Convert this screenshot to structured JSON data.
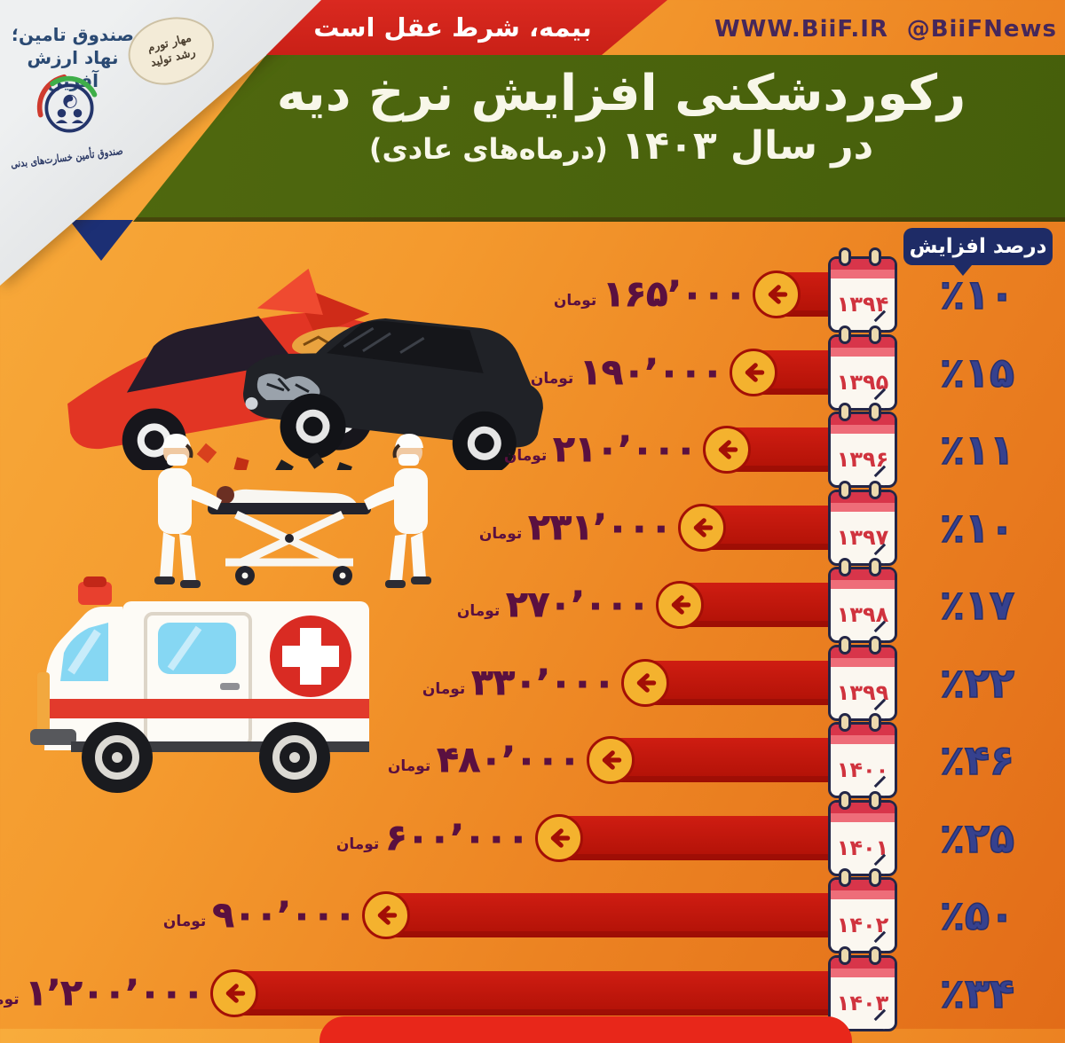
{
  "header": {
    "org": {
      "line1": "صندوق تامین؛",
      "line2": "نهاد ارزش آفرین",
      "seal": "صندوق تأمین خسارت‌های بدنی"
    },
    "stamp": {
      "line1": "مهار تورم",
      "line2": "رشد تولید"
    },
    "ribbon": "بیمه، شرط عقل است",
    "website": "WWW.BiiF.IR",
    "social": "@BiiFNews",
    "title_line1": "رکوردشکنی افزایش نرخ دیه",
    "title_line2_main": "در سال ۱۴۰۳",
    "title_line2_paren": "(درماه‌های عادی)"
  },
  "table": {
    "header_label": "درصد افزایش",
    "unit_label": "تومان",
    "rows": [
      {
        "year": "۱۳۹۴",
        "amount": "۱۶۵٬۰۰۰",
        "percent": "٪۱۰"
      },
      {
        "year": "۱۳۹۵",
        "amount": "۱۹۰٬۰۰۰",
        "percent": "٪۱۵"
      },
      {
        "year": "۱۳۹۶",
        "amount": "۲۱۰٬۰۰۰",
        "percent": "٪۱۱"
      },
      {
        "year": "۱۳۹۷",
        "amount": "۲۳۱٬۰۰۰",
        "percent": "٪۱۰"
      },
      {
        "year": "۱۳۹۸",
        "amount": "۲۷۰٬۰۰۰",
        "percent": "٪۱۷"
      },
      {
        "year": "۱۳۹۹",
        "amount": "۳۳۰٬۰۰۰",
        "percent": "٪۲۲"
      },
      {
        "year": "۱۴۰۰",
        "amount": "۴۸۰٬۰۰۰",
        "percent": "٪۴۶"
      },
      {
        "year": "۱۴۰۱",
        "amount": "۶۰۰٬۰۰۰",
        "percent": "٪۲۵"
      },
      {
        "year": "۱۴۰۲",
        "amount": "۹۰۰٬۰۰۰",
        "percent": "٪۵۰"
      },
      {
        "year": "۱۴۰۳",
        "amount": "۱٬۲۰۰٬۰۰۰",
        "percent": "٪۳۴"
      }
    ]
  },
  "chart_data": {
    "type": "bar",
    "title": "رکوردشکنی افزایش نرخ دیه در سال ۱۴۰۳ (درماه‌های عادی)",
    "categories": [
      "۱۳۹۴",
      "۱۳۹۵",
      "۱۳۹۶",
      "۱۳۹۷",
      "۱۳۹۸",
      "۱۳۹۹",
      "۱۴۰۰",
      "۱۴۰۱",
      "۱۴۰۲",
      "۱۴۰۳"
    ],
    "series": [
      {
        "name": "نرخ دیه (تومان)",
        "values": [
          165000,
          190000,
          210000,
          231000,
          270000,
          330000,
          480000,
          600000,
          900000,
          1200000
        ]
      },
      {
        "name": "درصد افزایش",
        "values": [
          10,
          15,
          11,
          10,
          17,
          22,
          46,
          25,
          50,
          34
        ]
      }
    ],
    "unit": "تومان",
    "orientation": "horizontal",
    "legend_position": "none",
    "grid": false
  },
  "colors": {
    "background_orange": "#f2952e",
    "band_green": "#4a630f",
    "ribbon_red": "#d6231b",
    "bar_red": "#c3150c",
    "circle_yellow": "#f4b22e",
    "amount_purple": "#5a1040",
    "percent_navy": "#36418e",
    "badge_navy": "#1e2b66",
    "calendar_red": "#d8354a"
  }
}
